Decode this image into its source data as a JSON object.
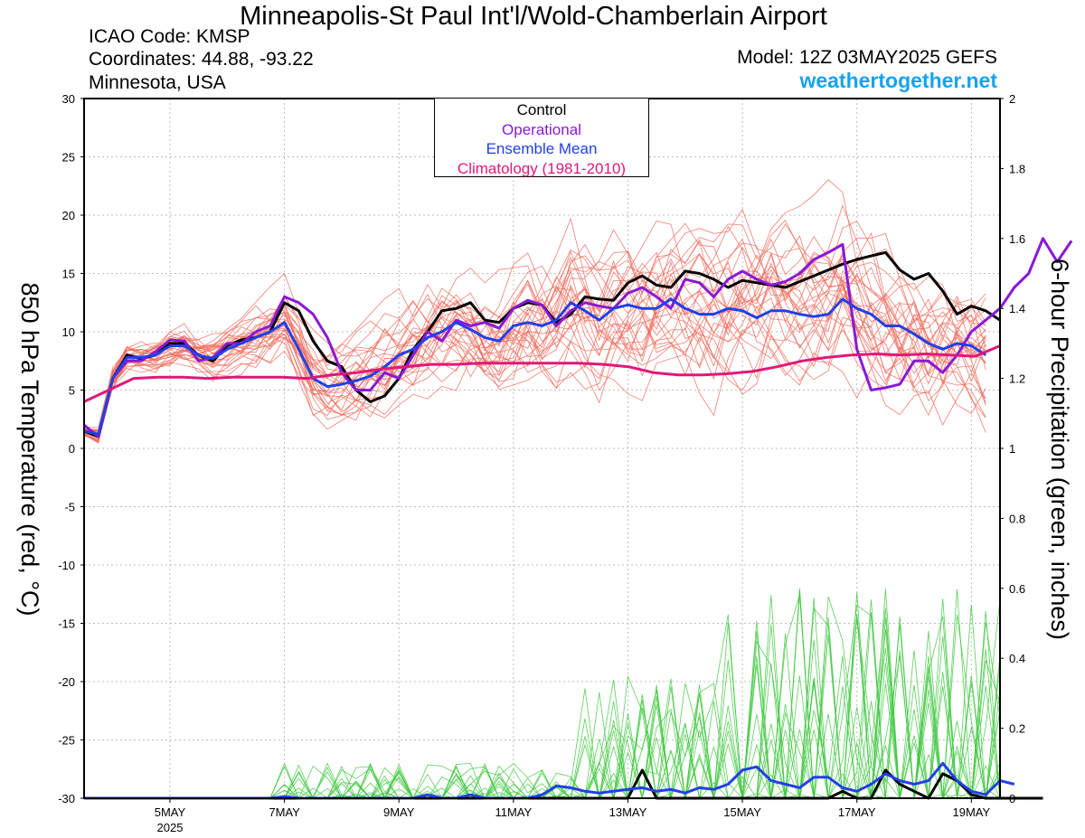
{
  "header": {
    "title": "Minneapolis-St Paul Int'l/Wold-Chamberlain Airport",
    "icao": "ICAO Code: KMSP",
    "coords": "Coordinates: 44.88, -93.22",
    "region": "Minnesota, USA",
    "model": "Model: 12Z 03MAY2025 GEFS",
    "site": "weathertogether.net"
  },
  "legend": {
    "control": "Control",
    "operational": "Operational",
    "mean": "Ensemble Mean",
    "climo": "Climatology (1981-2010)"
  },
  "colors": {
    "members_temp": "#f06a5a",
    "members_precip": "#3ec83e",
    "control": "#000000",
    "operational": "#8a18d8",
    "mean": "#2040e8",
    "climo": "#e0187a",
    "site": "#17a2f0"
  },
  "chart_data": {
    "type": "line",
    "xlabel": "",
    "ylabel": "850 hPa Temperature (red, °C)",
    "ylabel_right": "6-hour Precipitation (green, inches)",
    "ylim": [
      -30,
      30
    ],
    "ylim_right": [
      0,
      2
    ],
    "y_ticks": [
      "30",
      "25",
      "20",
      "15",
      "10",
      "5",
      "0",
      "-5",
      "-10",
      "-15",
      "-20",
      "-25",
      "-30"
    ],
    "y_ticks_right": [
      "2",
      "1.8",
      "1.6",
      "1.4",
      "1.2",
      "1",
      "0.8",
      "0.6",
      "0.4",
      "0.2",
      "0"
    ],
    "x_range_days": [
      3.5,
      19.5
    ],
    "x_ticks": [
      {
        "day": 5,
        "label": "5MAY",
        "sub": "2025"
      },
      {
        "day": 7,
        "label": "7MAY",
        "sub": ""
      },
      {
        "day": 9,
        "label": "9MAY",
        "sub": ""
      },
      {
        "day": 11,
        "label": "11MAY",
        "sub": ""
      },
      {
        "day": 13,
        "label": "13MAY",
        "sub": ""
      },
      {
        "day": 15,
        "label": "15MAY",
        "sub": ""
      },
      {
        "day": 17,
        "label": "17MAY",
        "sub": ""
      },
      {
        "day": 19,
        "label": "19MAY",
        "sub": ""
      }
    ],
    "grid": true,
    "step_hours": 6,
    "start_time": "03MAY2025 12Z",
    "series": [
      {
        "name": "Control",
        "axis": "temp",
        "values": [
          1.5,
          1,
          6,
          8,
          7.7,
          8,
          9,
          9,
          8,
          7.5,
          8.8,
          9.3,
          9.5,
          10,
          12.5,
          11.8,
          9.2,
          7.5,
          7,
          5,
          4,
          4.5,
          6,
          8.5,
          10,
          11.8,
          12,
          12.5,
          11,
          10.8,
          12,
          12.5,
          12.3,
          10.8,
          11.5,
          13,
          12.8,
          12.7,
          14.2,
          14.8,
          14,
          13.8,
          15.2,
          15,
          14.5,
          13.8,
          14.4,
          14.2,
          14,
          13.8,
          14.3,
          14.8,
          15.3,
          15.8,
          16.2,
          16.5,
          16.8,
          15.3,
          14.5,
          15,
          13.5,
          11.5,
          12.2,
          11.8,
          11
        ]
      },
      {
        "name": "Operational",
        "axis": "temp",
        "values": [
          2,
          1,
          6,
          7.5,
          7.5,
          8.3,
          9.3,
          9.2,
          7.5,
          7.8,
          9,
          9,
          10,
          10.5,
          13,
          12.5,
          11.5,
          9.5,
          6.5,
          5,
          5,
          6.5,
          6,
          8,
          10,
          9.2,
          11,
          10.5,
          10.8,
          10.3,
          12,
          12.7,
          12.3,
          10.5,
          11.8,
          12.5,
          12.2,
          12,
          13.3,
          13.8,
          13,
          12,
          14.5,
          14.2,
          13,
          14.5,
          15.2,
          14.5,
          14,
          14.3,
          15,
          16.2,
          16.8,
          17.5,
          8.5,
          5,
          5.2,
          5.5,
          7.5,
          7.5,
          6.5,
          8,
          10,
          11,
          12,
          13.8,
          15,
          18,
          16,
          17.8
        ]
      },
      {
        "name": "Ensemble Mean",
        "axis": "temp",
        "values": [
          1.5,
          1.2,
          6,
          7.8,
          7.8,
          8,
          8.8,
          8.8,
          8,
          7.7,
          8.5,
          9,
          9.5,
          10,
          10.8,
          8.5,
          6,
          5.3,
          5.5,
          5.8,
          6.2,
          7,
          8,
          8.5,
          9.5,
          10,
          10.8,
          10.2,
          9.5,
          9.2,
          10.5,
          10.8,
          10.5,
          11,
          12.5,
          11.8,
          11,
          12,
          12.3,
          12,
          12,
          12.8,
          12,
          11.5,
          11.5,
          12,
          11.8,
          11.2,
          11.8,
          11.8,
          11.5,
          11.3,
          11.5,
          12.8,
          12,
          11.5,
          10.5,
          10.5,
          9.8,
          9,
          8.5,
          9,
          8.8,
          8
        ]
      },
      {
        "name": "Climatology (1981-2010)",
        "axis": "temp",
        "values": [
          4,
          5,
          6,
          6.1,
          6.1,
          6,
          6.1,
          6.1,
          6.1,
          6,
          6.3,
          6.5,
          6.8,
          7,
          7.2,
          7.2,
          7.3,
          7.3,
          7.3,
          7.3,
          7.3,
          7.2,
          7,
          6.5,
          6.3,
          6.3,
          6.4,
          6.6,
          7,
          7.5,
          7.8,
          8,
          8.1,
          8,
          8.1,
          8,
          7.9,
          8.8
        ]
      },
      {
        "name": "Control",
        "axis": "precip",
        "values": [
          0,
          0,
          0,
          0,
          0,
          0,
          0,
          0,
          0,
          0,
          0,
          0,
          0,
          0,
          0,
          0,
          0,
          0,
          0,
          0,
          0,
          0,
          0,
          0,
          0,
          0,
          0,
          0,
          0,
          0,
          0,
          0,
          0,
          0,
          0,
          0,
          0,
          0,
          0,
          0.08,
          0,
          0,
          0,
          0,
          0,
          0,
          0,
          0,
          0,
          0,
          0,
          0,
          0,
          0.02,
          0,
          0,
          0.08,
          0.04,
          0.02,
          0,
          0.07,
          0.05,
          0.01,
          0,
          0,
          0,
          0,
          0
        ]
      },
      {
        "name": "Ensemble Mean",
        "axis": "precip",
        "values": [
          0,
          0,
          0,
          0,
          0,
          0,
          0,
          0,
          0,
          0,
          0,
          0,
          0,
          0,
          0.005,
          0,
          0,
          0,
          0,
          0,
          0,
          0,
          0,
          0,
          0.01,
          0,
          0,
          0.01,
          0,
          0,
          0,
          0,
          0.01,
          0.035,
          0.03,
          0.02,
          0.015,
          0.02,
          0.025,
          0.03,
          0.02,
          0.025,
          0.015,
          0.03,
          0.025,
          0.04,
          0.08,
          0.09,
          0.05,
          0.04,
          0.03,
          0.06,
          0.06,
          0.03,
          0.02,
          0.04,
          0.07,
          0.05,
          0.04,
          0.05,
          0.1,
          0.05,
          0.02,
          0.01,
          0.05,
          0.04
        ]
      }
    ]
  }
}
